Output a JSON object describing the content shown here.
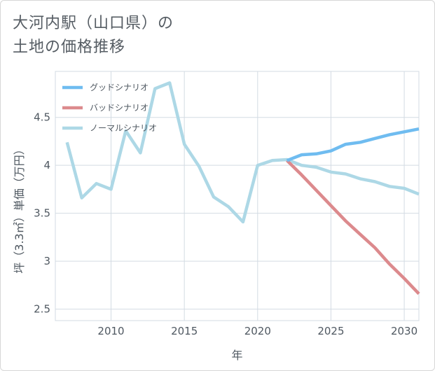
{
  "title_lines": [
    "大河内駅（山口県）の",
    "土地の価格推移"
  ],
  "chart_data": {
    "type": "line",
    "xlabel": "年",
    "ylabel": "坪（3.3㎡）単価（万円）",
    "xlim": [
      2006.2,
      2031
    ],
    "ylim": [
      2.38,
      4.98
    ],
    "x_ticks": [
      2010,
      2015,
      2020,
      2025,
      2030
    ],
    "x_tick_labels": [
      "2010",
      "2015",
      "2020",
      "2025",
      "2030"
    ],
    "y_ticks": [
      2.5,
      3,
      3.5,
      4,
      4.5
    ],
    "y_tick_labels": [
      "2.5",
      "3",
      "3.5",
      "4",
      "4.5"
    ],
    "grid": true,
    "legend_position": "top-left",
    "series": [
      {
        "name": "グッドシナリオ",
        "color": "#6fbcf0",
        "x": [
          2022,
          2023,
          2024,
          2025,
          2026,
          2027,
          2028,
          2029,
          2030,
          2031
        ],
        "y": [
          4.05,
          4.11,
          4.12,
          4.15,
          4.22,
          4.24,
          4.28,
          4.32,
          4.35,
          4.38
        ]
      },
      {
        "name": "バッドシナリオ",
        "color": "#dc8a8d",
        "x": [
          2022,
          2023,
          2024,
          2025,
          2026,
          2027,
          2028,
          2029,
          2030,
          2031
        ],
        "y": [
          4.05,
          3.9,
          3.74,
          3.58,
          3.42,
          3.28,
          3.14,
          2.97,
          2.82,
          2.66
        ]
      },
      {
        "name": "ノーマルシナリオ",
        "color": "#add8e6",
        "x": [
          2007,
          2008,
          2009,
          2010,
          2011,
          2012,
          2013,
          2014,
          2015,
          2016,
          2017,
          2018,
          2019,
          2020,
          2021,
          2022,
          2023,
          2024,
          2025,
          2026,
          2027,
          2028,
          2029,
          2030,
          2031
        ],
        "y": [
          4.24,
          3.66,
          3.81,
          3.75,
          4.36,
          4.13,
          4.8,
          4.86,
          4.22,
          3.99,
          3.67,
          3.57,
          3.41,
          4.0,
          4.05,
          4.06,
          4.0,
          3.98,
          3.93,
          3.91,
          3.86,
          3.83,
          3.78,
          3.76,
          3.7
        ]
      }
    ]
  }
}
